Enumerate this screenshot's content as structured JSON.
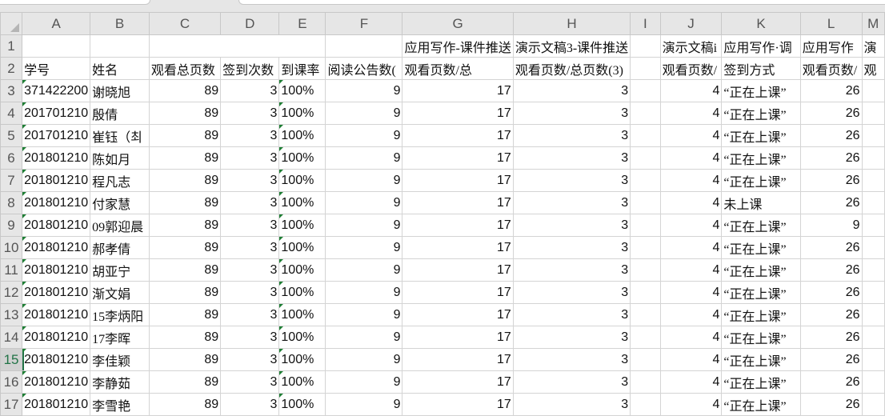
{
  "columns": [
    "A",
    "B",
    "C",
    "D",
    "E",
    "F",
    "G",
    "H",
    "I",
    "J",
    "K",
    "L",
    "M"
  ],
  "row1": [
    "",
    "",
    "",
    "",
    "",
    "",
    "应用写作-课件推送",
    "演示文稿3-课件推送",
    "",
    "演示文稿i",
    "应用写作·调",
    "应用写作",
    "演"
  ],
  "row2": [
    "学号",
    "姓名",
    "观看总页数",
    "签到次数",
    "到课率",
    "阅读公告数(",
    "观看页数/总",
    "观看页数/总页数(3)",
    "",
    "观看页数/",
    "签到方式",
    "观看页数/",
    "观"
  ],
  "selected_row": 15,
  "rows": [
    {
      "n": 3,
      "cells": [
        "371422200",
        "谢晓旭",
        "89",
        "3",
        "100%",
        "9",
        "17",
        "3",
        "",
        "4",
        "“正在上课”",
        "26",
        ""
      ]
    },
    {
      "n": 4,
      "cells": [
        "201701210",
        "殷倩",
        "89",
        "3",
        "100%",
        "9",
        "17",
        "3",
        "",
        "4",
        "“正在上课”",
        "26",
        ""
      ]
    },
    {
      "n": 5,
      "cells": [
        "201701210",
        "崔钰（최",
        "89",
        "3",
        "100%",
        "9",
        "17",
        "3",
        "",
        "4",
        "“正在上课”",
        "26",
        ""
      ]
    },
    {
      "n": 6,
      "cells": [
        "201801210",
        "陈如月",
        "89",
        "3",
        "100%",
        "9",
        "17",
        "3",
        "",
        "4",
        "“正在上课”",
        "26",
        ""
      ]
    },
    {
      "n": 7,
      "cells": [
        "201801210",
        "程凡志",
        "89",
        "3",
        "100%",
        "9",
        "17",
        "3",
        "",
        "4",
        "“正在上课”",
        "26",
        ""
      ]
    },
    {
      "n": 8,
      "cells": [
        "201801210",
        "付家慧",
        "89",
        "3",
        "100%",
        "9",
        "17",
        "3",
        "",
        "4",
        "未上课",
        "26",
        ""
      ]
    },
    {
      "n": 9,
      "cells": [
        "201801210",
        "09郭迎晨",
        "89",
        "3",
        "100%",
        "9",
        "17",
        "3",
        "",
        "4",
        "“正在上课”",
        "9",
        ""
      ]
    },
    {
      "n": 10,
      "cells": [
        "201801210",
        "郝孝倩",
        "89",
        "3",
        "100%",
        "9",
        "17",
        "3",
        "",
        "4",
        "“正在上课”",
        "26",
        ""
      ]
    },
    {
      "n": 11,
      "cells": [
        "201801210",
        "胡亚宁",
        "89",
        "3",
        "100%",
        "9",
        "17",
        "3",
        "",
        "4",
        "“正在上课”",
        "26",
        ""
      ]
    },
    {
      "n": 12,
      "cells": [
        "201801210",
        "渐文娟",
        "89",
        "3",
        "100%",
        "9",
        "17",
        "3",
        "",
        "4",
        "“正在上课”",
        "26",
        ""
      ]
    },
    {
      "n": 13,
      "cells": [
        "201801210",
        "15李炳阳",
        "89",
        "3",
        "100%",
        "9",
        "17",
        "3",
        "",
        "4",
        "“正在上课”",
        "26",
        ""
      ]
    },
    {
      "n": 14,
      "cells": [
        "201801210",
        "17李晖",
        "89",
        "3",
        "100%",
        "9",
        "17",
        "3",
        "",
        "4",
        "“正在上课”",
        "26",
        ""
      ]
    },
    {
      "n": 15,
      "cells": [
        "201801210",
        "李佳颖",
        "89",
        "3",
        "100%",
        "9",
        "17",
        "3",
        "",
        "4",
        "“正在上课”",
        "26",
        ""
      ]
    },
    {
      "n": 16,
      "cells": [
        "201801210",
        "李静茹",
        "89",
        "3",
        "100%",
        "9",
        "17",
        "3",
        "",
        "4",
        "“正在上课”",
        "26",
        ""
      ]
    },
    {
      "n": 17,
      "cells": [
        "201801210",
        "李雪艳",
        "89",
        "3",
        "100%",
        "9",
        "17",
        "3",
        "",
        "4",
        "“正在上课”",
        "26",
        ""
      ]
    }
  ],
  "colors": {
    "accent": "#217346",
    "grid": "#d4d4d4",
    "header_bg": "#e6e6e6"
  }
}
